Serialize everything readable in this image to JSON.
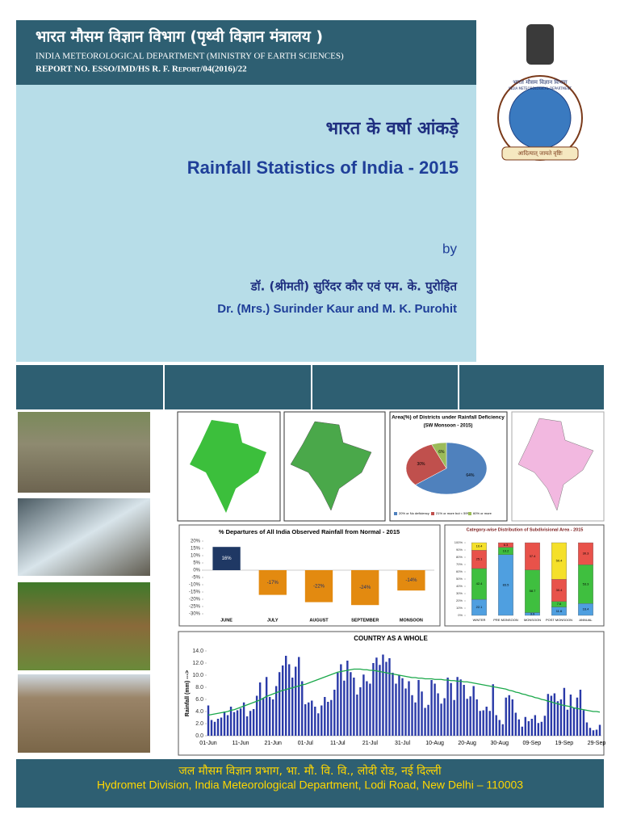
{
  "header": {
    "hindi": "भारत मौसम विज्ञान विभाग (पृथ्वी विज्ञान मंत्रालय )",
    "org": "INDIA METEOROLOGICAL DEPARTMENT (MINISTRY OF EARTH SCIENCES)",
    "report": "REPORT NO.  ESSO/IMD/HS R. F. Report/04(2016)/22"
  },
  "emblem": {
    "hindi": "भारत मौसम विज्ञान विभाग",
    "english": "INDIA METEOROLOGICAL DEPARTMENT",
    "motto": "आदित्यात् जायते वृष्टिः"
  },
  "title_block": {
    "hindi_title": "भारत के वर्षा आंकड़े",
    "title": "Rainfall Statistics of India - 2015",
    "by": "by",
    "hindi_authors": "डॉ. (श्रीमती) सुरिंदर कौर एवं एम. के. पुरोहित",
    "authors": "Dr. (Mrs.) Surinder Kaur and M. K. Purohit"
  },
  "footer": {
    "hindi": "जल मौसम विज्ञान प्रभाग, भा. मौ. वि. वि., लोदी रोड, नई दिल्ली",
    "address": "Hydromet Division, India Meteorological Department, Lodi Road, New Delhi – 110003"
  },
  "chart_data": [
    {
      "type": "bar",
      "title": "% Departures of All India Observed Rainfall from Normal - 2015",
      "categories": [
        "JUNE",
        "JULY",
        "AUGUST",
        "SEPTEMBER",
        "MONSOON"
      ],
      "values": [
        16,
        -17,
        -22,
        -24,
        -14
      ],
      "value_labels": [
        "16%",
        "-17%",
        "-22%",
        "-24%",
        "-14%"
      ],
      "colors": [
        "#1f3864",
        "#e38a10",
        "#e38a10",
        "#e38a10",
        "#e38a10"
      ],
      "ylim": [
        -30,
        20
      ],
      "yticks": [
        {
          "value": 20,
          "label": "20%"
        },
        {
          "value": 15,
          "label": "15%"
        },
        {
          "value": 10,
          "label": "10%"
        },
        {
          "value": 5,
          "label": "5%"
        },
        {
          "value": 0,
          "label": "0%"
        },
        {
          "value": -5,
          "label": "-5%"
        },
        {
          "value": -10,
          "label": "-10%"
        },
        {
          "value": -15,
          "label": "-15%"
        },
        {
          "value": -20,
          "label": "-20%"
        },
        {
          "value": -25,
          "label": "-25%"
        },
        {
          "value": -30,
          "label": "-30%"
        }
      ]
    },
    {
      "type": "pie",
      "title": "Area(%) of Districts under Rainfall Deficiency",
      "subtitle": "(SW Monsoon - 2015)",
      "series": [
        {
          "name": "20% or No deficiency",
          "color": "#4f81bd",
          "values": [
            64
          ]
        },
        {
          "name": "21% or more but < 59%",
          "color": "#c0504d",
          "values": [
            30
          ]
        },
        {
          "name": "60% or more",
          "color": "#9bbb59",
          "values": [
            6
          ]
        }
      ],
      "value_labels": [
        "64%",
        "30%",
        "6%"
      ]
    },
    {
      "type": "stacked_bar",
      "title": "Category-wise Distribution of Subdivisional Area - 2015",
      "categories": [
        "WINTER",
        "PRE MONSOON",
        "MONSOON",
        "POST MONSOON",
        "ANNUAL"
      ],
      "series": [
        {
          "color": "#4f9fe0",
          "values": [
            22.1,
            83.5,
            3.9,
            11.6,
            16.4
          ]
        },
        {
          "color": "#3fbf3f",
          "values": [
            42.4,
            10.2,
            58.7,
            7.6,
            53.3
          ]
        },
        {
          "color": "#e8524a",
          "values": [
            25.1,
            6.3,
            37.4,
            30.4,
            30.3
          ]
        },
        {
          "color": "#f5e02a",
          "values": [
            10.4,
            0,
            0,
            50.4,
            0
          ]
        }
      ],
      "ylim": [
        0,
        100
      ],
      "yticks": [
        {
          "value": 0,
          "label": "0%"
        },
        {
          "value": 10,
          "label": "10%"
        },
        {
          "value": 20,
          "label": "20%"
        },
        {
          "value": 30,
          "label": "30%"
        },
        {
          "value": 40,
          "label": "40%"
        },
        {
          "value": 50,
          "label": "50%"
        },
        {
          "value": 60,
          "label": "60%"
        },
        {
          "value": 70,
          "label": "70%"
        },
        {
          "value": 80,
          "label": "80%"
        },
        {
          "value": 90,
          "label": "90%"
        },
        {
          "value": 100,
          "label": "100%"
        }
      ]
    },
    {
      "type": "combo",
      "title": "COUNTRY AS A WHOLE",
      "y_label": "Rainfall (mm) --->",
      "categories": [
        "01-Jun",
        null,
        null,
        null,
        null,
        null,
        null,
        null,
        null,
        null,
        "11-Jun",
        null,
        null,
        null,
        null,
        null,
        null,
        null,
        null,
        null,
        "21-Jun",
        null,
        null,
        null,
        null,
        null,
        null,
        null,
        null,
        null,
        "01-Jul",
        null,
        null,
        null,
        null,
        null,
        null,
        null,
        null,
        null,
        "11-Jul",
        null,
        null,
        null,
        null,
        null,
        null,
        null,
        null,
        null,
        "21-Jul",
        null,
        null,
        null,
        null,
        null,
        null,
        null,
        null,
        null,
        "31-Jul",
        null,
        null,
        null,
        null,
        null,
        null,
        null,
        null,
        null,
        "10-Aug",
        null,
        null,
        null,
        null,
        null,
        null,
        null,
        null,
        null,
        "20-Aug",
        null,
        null,
        null,
        null,
        null,
        null,
        null,
        null,
        null,
        "30-Aug",
        null,
        null,
        null,
        null,
        null,
        null,
        null,
        null,
        null,
        "09-Sep",
        null,
        null,
        null,
        null,
        null,
        null,
        null,
        null,
        null,
        "19-Sep",
        null,
        null,
        null,
        null,
        null,
        null,
        null,
        null,
        null,
        "29-Sep",
        null
      ],
      "series": [
        {
          "type": "bar",
          "color": "#2a3aa8",
          "values": [
            5.0,
            2.6,
            2.3,
            2.8,
            3.0,
            4.0,
            3.4,
            4.8,
            3.9,
            4.2,
            4.5,
            5.5,
            3.2,
            4.1,
            4.4,
            6.6,
            8.8,
            6.2,
            9.7,
            6.4,
            6.0,
            8.2,
            10.5,
            11.6,
            13.2,
            11.8,
            9.6,
            11.4,
            13.0,
            9.0,
            5.2,
            5.5,
            5.8,
            4.8,
            3.7,
            5.0,
            6.4,
            5.6,
            5.9,
            7.6,
            10.4,
            11.8,
            9.1,
            12.4,
            10.5,
            9.6,
            6.8,
            8.0,
            10.1,
            9.0,
            8.6,
            12.0,
            12.9,
            11.7,
            13.4,
            12.2,
            12.8,
            10.4,
            8.6,
            10.0,
            9.5,
            7.8,
            9.0,
            6.7,
            5.5,
            9.2,
            7.3,
            4.6,
            5.1,
            9.2,
            8.6,
            7.0,
            5.3,
            6.2,
            9.6,
            8.7,
            5.9,
            9.7,
            9.3,
            8.4,
            6.1,
            6.5,
            8.2,
            6.0,
            4.1,
            4.2,
            4.8,
            4.1,
            8.5,
            3.4,
            2.6,
            1.9,
            6.3,
            6.7,
            6.0,
            3.8,
            2.7,
            1.5,
            3.1,
            2.4,
            2.8,
            3.4,
            2.1,
            2.3,
            3.3,
            6.9,
            6.6,
            7.0,
            5.7,
            6.0,
            7.9,
            4.3,
            6.8,
            4.6,
            6.3,
            7.6,
            4.2,
            2.2,
            1.3,
            0.9,
            1.0,
            1.8
          ]
        },
        {
          "type": "line",
          "color": "#1aa84a",
          "values": [
            3.4,
            3.5,
            3.6,
            3.7,
            3.8,
            3.9,
            4.0,
            4.2,
            4.3,
            4.5,
            4.7,
            4.9,
            5.1,
            5.3,
            5.5,
            5.7,
            5.9,
            6.2,
            6.5,
            6.7,
            6.9,
            7.1,
            7.3,
            7.5,
            7.6,
            7.8,
            7.9,
            8.1,
            8.2,
            8.4,
            8.5,
            8.7,
            8.9,
            9.1,
            9.3,
            9.5,
            9.7,
            9.9,
            10.1,
            10.3,
            10.5,
            10.6,
            10.7,
            10.8,
            10.9,
            11.0,
            11.0,
            11.0,
            10.9,
            10.9,
            10.8,
            10.8,
            10.7,
            10.6,
            10.5,
            10.4,
            10.3,
            10.2,
            10.1,
            10.0,
            9.9,
            9.8,
            9.7,
            9.6,
            9.6,
            9.5,
            9.5,
            9.4,
            9.4,
            9.4,
            9.3,
            9.3,
            9.3,
            9.2,
            9.2,
            9.1,
            9.1,
            9.0,
            9.0,
            8.9,
            8.9,
            8.8,
            8.7,
            8.6,
            8.5,
            8.4,
            8.3,
            8.2,
            8.1,
            8.0,
            7.9,
            7.8,
            7.7,
            7.5,
            7.4,
            7.2,
            7.1,
            6.9,
            6.8,
            6.6,
            6.5,
            6.3,
            6.2,
            6.0,
            5.9,
            5.7,
            5.6,
            5.4,
            5.3,
            5.1,
            5.0,
            4.9,
            4.8,
            4.6,
            4.5,
            4.4,
            4.3,
            4.2,
            4.1,
            4.0,
            4.0,
            3.9
          ]
        }
      ],
      "ylim": [
        0,
        14
      ],
      "yticks": [
        {
          "value": 0,
          "label": "0.0"
        },
        {
          "value": 2,
          "label": "2.0"
        },
        {
          "value": 4,
          "label": "4.0"
        },
        {
          "value": 6,
          "label": "6.0"
        },
        {
          "value": 8,
          "label": "8.0"
        },
        {
          "value": 10,
          "label": "10.0"
        },
        {
          "value": 12,
          "label": "12.0"
        },
        {
          "value": 14,
          "label": "14.0"
        }
      ]
    }
  ]
}
